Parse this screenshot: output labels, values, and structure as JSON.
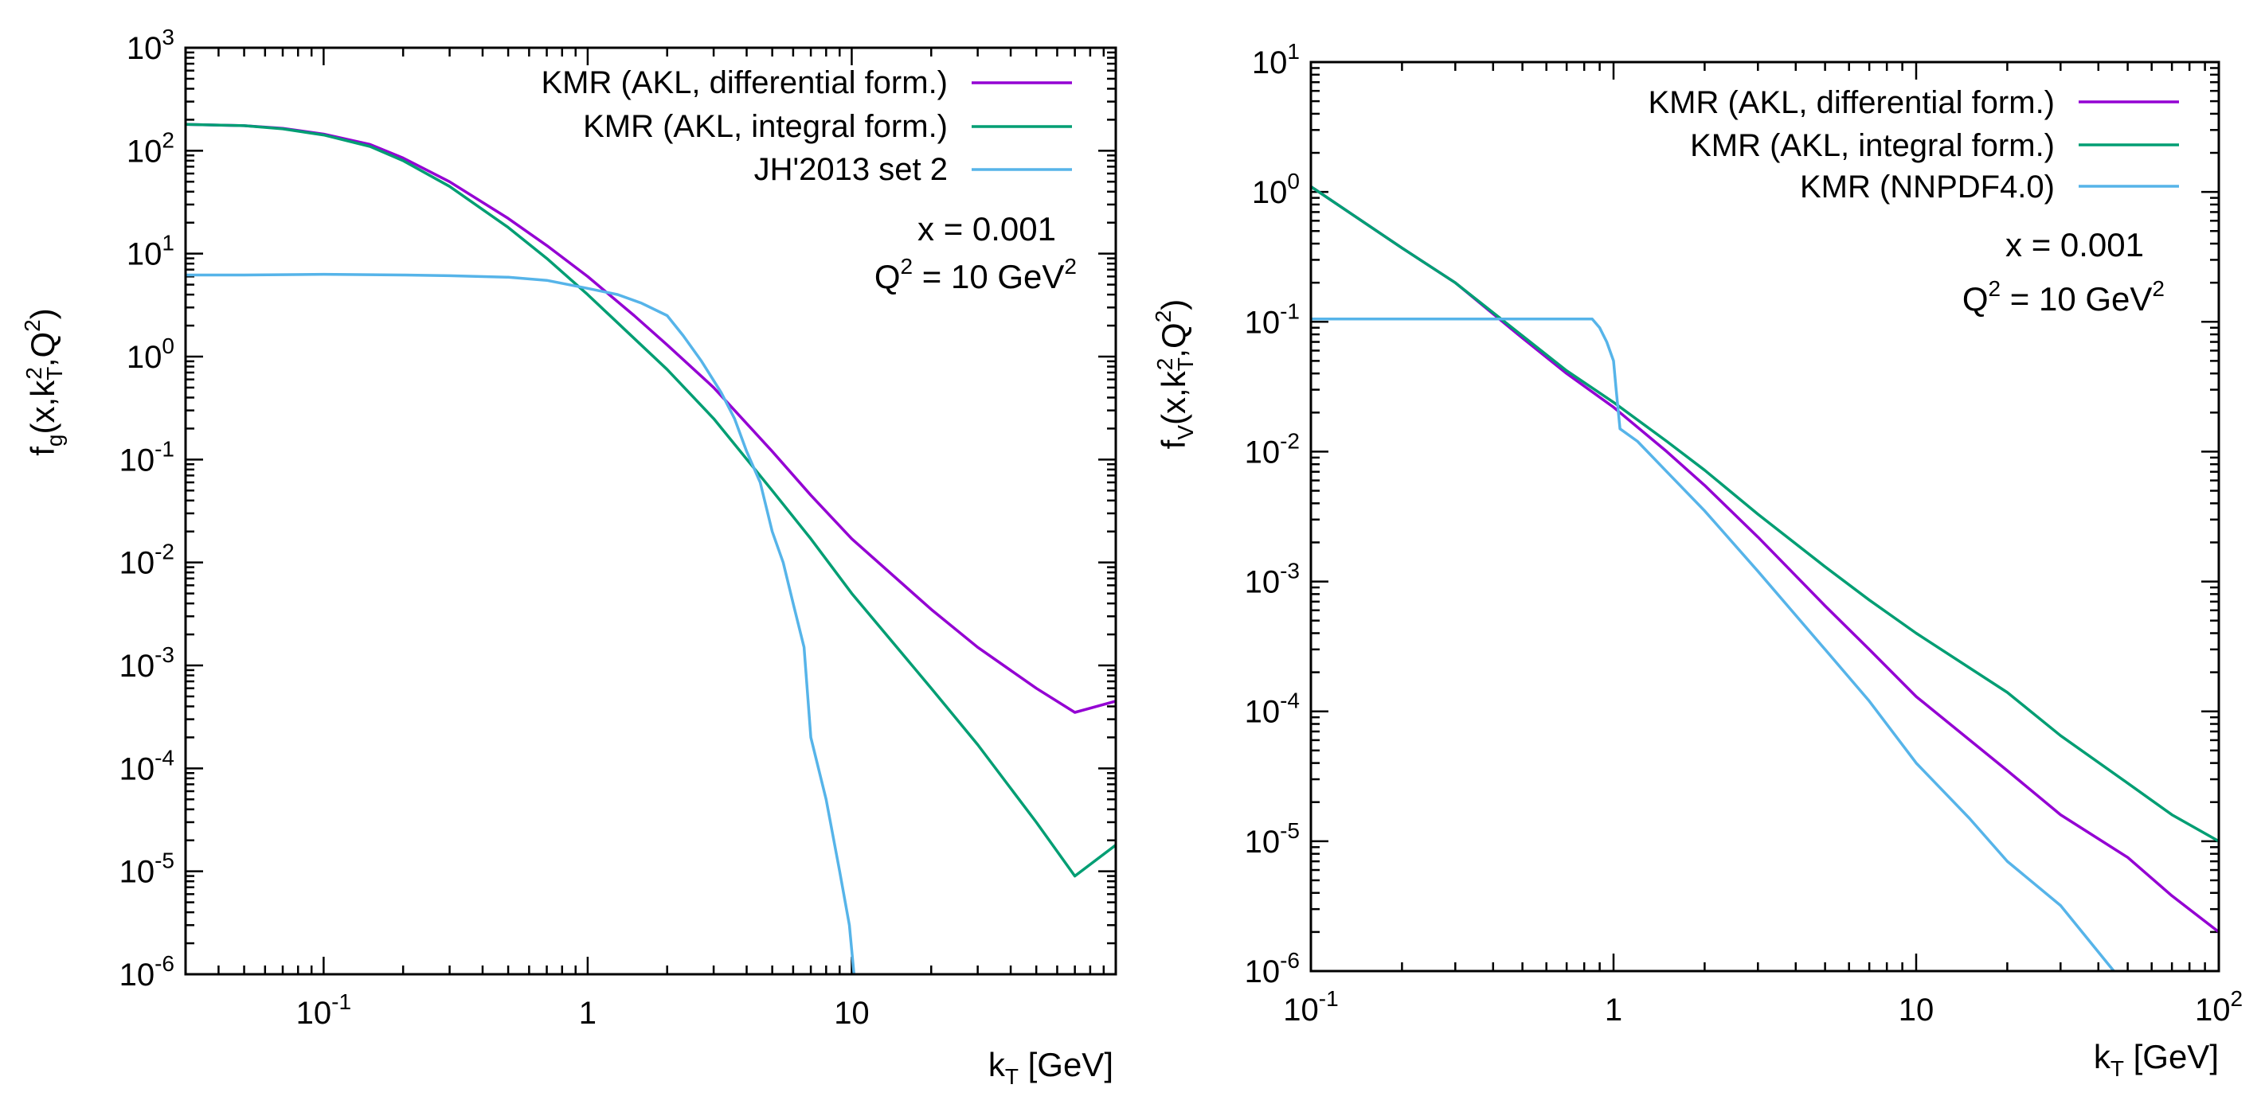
{
  "colors": {
    "differential": "#9400d3",
    "integral": "#009e73",
    "third": "#56b4e9"
  },
  "chart_data": [
    {
      "type": "line",
      "log_x": true,
      "log_y": true,
      "xlim": [
        0.03,
        100
      ],
      "ylim": [
        1e-06,
        1000
      ],
      "xlabel": {
        "main": "k",
        "sub": "T",
        "rest": " [GeV]"
      },
      "ylabel": {
        "f": "f",
        "fsub": "g",
        "a": "(x,k",
        "asub": "T",
        "asup": "2",
        "b": ",Q",
        "bsup": "2",
        "c": ")"
      },
      "x_ticks": [
        {
          "value": 0.1,
          "base": "10",
          "exp": "-1"
        },
        {
          "value": 1,
          "base": "1",
          "exp": ""
        },
        {
          "value": 10,
          "base": "10",
          "exp": ""
        }
      ],
      "y_ticks": [
        {
          "value": 1000,
          "base": "10",
          "exp": "3"
        },
        {
          "value": 100,
          "base": "10",
          "exp": "2"
        },
        {
          "value": 10,
          "base": "10",
          "exp": "1"
        },
        {
          "value": 1,
          "base": "10",
          "exp": "0"
        },
        {
          "value": 0.1,
          "base": "10",
          "exp": "-1"
        },
        {
          "value": 0.01,
          "base": "10",
          "exp": "-2"
        },
        {
          "value": 0.001,
          "base": "10",
          "exp": "-3"
        },
        {
          "value": 0.0001,
          "base": "10",
          "exp": "-4"
        },
        {
          "value": 1e-05,
          "base": "10",
          "exp": "-5"
        },
        {
          "value": 1e-06,
          "base": "10",
          "exp": "-6"
        }
      ],
      "annotation": {
        "x_line": "x = 0.001",
        "q_pre": "Q",
        "q_sup": "2",
        "q_mid": " = 10 GeV",
        "q_sup2": "2"
      },
      "series": [
        {
          "name": "KMR (AKL, differential form.)",
          "color_key": "differential",
          "points": [
            [
              0.03,
              180
            ],
            [
              0.05,
              175
            ],
            [
              0.07,
              165
            ],
            [
              0.1,
              145
            ],
            [
              0.15,
              115
            ],
            [
              0.2,
              85
            ],
            [
              0.3,
              50
            ],
            [
              0.5,
              22
            ],
            [
              0.7,
              12
            ],
            [
              1,
              6
            ],
            [
              1.5,
              2.5
            ],
            [
              2,
              1.3
            ],
            [
              3,
              0.5
            ],
            [
              5,
              0.12
            ],
            [
              7,
              0.045
            ],
            [
              10,
              0.017
            ],
            [
              20,
              0.0035
            ],
            [
              30,
              0.0015
            ],
            [
              50,
              0.0006
            ],
            [
              70,
              0.00035
            ],
            [
              100,
              0.00045
            ]
          ]
        },
        {
          "name": "KMR (AKL, integral form.)",
          "color_key": "integral",
          "points": [
            [
              0.03,
              180
            ],
            [
              0.05,
              175
            ],
            [
              0.07,
              163
            ],
            [
              0.1,
              142
            ],
            [
              0.15,
              110
            ],
            [
              0.2,
              80
            ],
            [
              0.3,
              45
            ],
            [
              0.5,
              18
            ],
            [
              0.7,
              9
            ],
            [
              1,
              4
            ],
            [
              1.5,
              1.5
            ],
            [
              2,
              0.75
            ],
            [
              3,
              0.25
            ],
            [
              5,
              0.05
            ],
            [
              7,
              0.017
            ],
            [
              10,
              0.005
            ],
            [
              20,
              0.0006
            ],
            [
              30,
              0.00017
            ],
            [
              50,
              3e-05
            ],
            [
              70,
              9e-06
            ],
            [
              100,
              1.8e-05
            ]
          ]
        },
        {
          "name": "JH'2013 set 2",
          "color_key": "third",
          "points": [
            [
              0.03,
              6.2
            ],
            [
              0.05,
              6.2
            ],
            [
              0.1,
              6.3
            ],
            [
              0.2,
              6.2
            ],
            [
              0.3,
              6.1
            ],
            [
              0.5,
              5.9
            ],
            [
              0.7,
              5.5
            ],
            [
              1,
              4.6
            ],
            [
              1.3,
              4
            ],
            [
              1.6,
              3.3
            ],
            [
              2,
              2.5
            ],
            [
              2.3,
              1.6
            ],
            [
              2.7,
              0.9
            ],
            [
              3.2,
              0.45
            ],
            [
              3.6,
              0.25
            ],
            [
              4,
              0.12
            ],
            [
              4.5,
              0.06
            ],
            [
              5,
              0.02
            ],
            [
              5.5,
              0.01
            ],
            [
              6,
              0.004
            ],
            [
              6.6,
              0.0015
            ],
            [
              7,
              0.0002
            ],
            [
              8,
              5e-05
            ],
            [
              9,
              1e-05
            ],
            [
              9.8,
              3e-06
            ],
            [
              10.2,
              1e-06
            ]
          ]
        }
      ]
    },
    {
      "type": "line",
      "log_x": true,
      "log_y": true,
      "xlim": [
        0.1,
        100
      ],
      "ylim": [
        1e-06,
        10
      ],
      "xlabel": {
        "main": "k",
        "sub": "T",
        "rest": " [GeV]"
      },
      "ylabel": {
        "f": "f",
        "fsub": "V",
        "a": "(x,k",
        "asub": "T",
        "asup": "2",
        "b": ",Q",
        "bsup": "2",
        "c": ")"
      },
      "x_ticks": [
        {
          "value": 0.1,
          "base": "10",
          "exp": "-1"
        },
        {
          "value": 1,
          "base": "1",
          "exp": ""
        },
        {
          "value": 10,
          "base": "10",
          "exp": ""
        },
        {
          "value": 100,
          "base": "10",
          "exp": "2"
        }
      ],
      "y_ticks": [
        {
          "value": 10,
          "base": "10",
          "exp": "1"
        },
        {
          "value": 1,
          "base": "10",
          "exp": "0"
        },
        {
          "value": 0.1,
          "base": "10",
          "exp": "-1"
        },
        {
          "value": 0.01,
          "base": "10",
          "exp": "-2"
        },
        {
          "value": 0.001,
          "base": "10",
          "exp": "-3"
        },
        {
          "value": 0.0001,
          "base": "10",
          "exp": "-4"
        },
        {
          "value": 1e-05,
          "base": "10",
          "exp": "-5"
        },
        {
          "value": 1e-06,
          "base": "10",
          "exp": "-6"
        }
      ],
      "annotation": {
        "x_line": "x = 0.001",
        "q_pre": "Q",
        "q_sup": "2",
        "q_mid": " = 10 GeV",
        "q_sup2": "2"
      },
      "series": [
        {
          "name": "KMR (AKL, differential form.)",
          "color_key": "differential",
          "points": [
            [
              0.1,
              1.1
            ],
            [
              0.2,
              0.37
            ],
            [
              0.3,
              0.2
            ],
            [
              0.5,
              0.075
            ],
            [
              0.7,
              0.04
            ],
            [
              1,
              0.022
            ],
            [
              1.5,
              0.01
            ],
            [
              2,
              0.0055
            ],
            [
              3,
              0.0022
            ],
            [
              5,
              0.00065
            ],
            [
              7,
              0.0003
            ],
            [
              10,
              0.00013
            ],
            [
              20,
              3.5e-05
            ],
            [
              30,
              1.6e-05
            ],
            [
              50,
              7.5e-06
            ],
            [
              70,
              3.8e-06
            ],
            [
              100,
              2e-06
            ]
          ]
        },
        {
          "name": "KMR (AKL, integral form.)",
          "color_key": "integral",
          "points": [
            [
              0.1,
              1.1
            ],
            [
              0.2,
              0.37
            ],
            [
              0.3,
              0.2
            ],
            [
              0.5,
              0.078
            ],
            [
              0.7,
              0.042
            ],
            [
              1,
              0.024
            ],
            [
              1.5,
              0.012
            ],
            [
              2,
              0.0072
            ],
            [
              3,
              0.0033
            ],
            [
              5,
              0.0013
            ],
            [
              7,
              0.00072
            ],
            [
              10,
              0.0004
            ],
            [
              20,
              0.00014
            ],
            [
              30,
              6.5e-05
            ],
            [
              50,
              2.8e-05
            ],
            [
              70,
              1.6e-05
            ],
            [
              100,
              1e-05
            ]
          ]
        },
        {
          "name": "KMR (NNPDF4.0)",
          "color_key": "third",
          "points": [
            [
              0.1,
              0.105
            ],
            [
              0.5,
              0.105
            ],
            [
              0.85,
              0.105
            ],
            [
              0.9,
              0.09
            ],
            [
              0.95,
              0.07
            ],
            [
              1.0,
              0.05
            ],
            [
              1.02,
              0.03
            ],
            [
              1.05,
              0.015
            ],
            [
              1.2,
              0.012
            ],
            [
              1.5,
              0.007
            ],
            [
              2,
              0.0035
            ],
            [
              3,
              0.0012
            ],
            [
              5,
              0.0003
            ],
            [
              7,
              0.00012
            ],
            [
              10,
              4e-05
            ],
            [
              15,
              1.5e-05
            ],
            [
              20,
              7e-06
            ],
            [
              30,
              3.2e-06
            ],
            [
              45,
              1e-06
            ]
          ]
        }
      ]
    }
  ]
}
